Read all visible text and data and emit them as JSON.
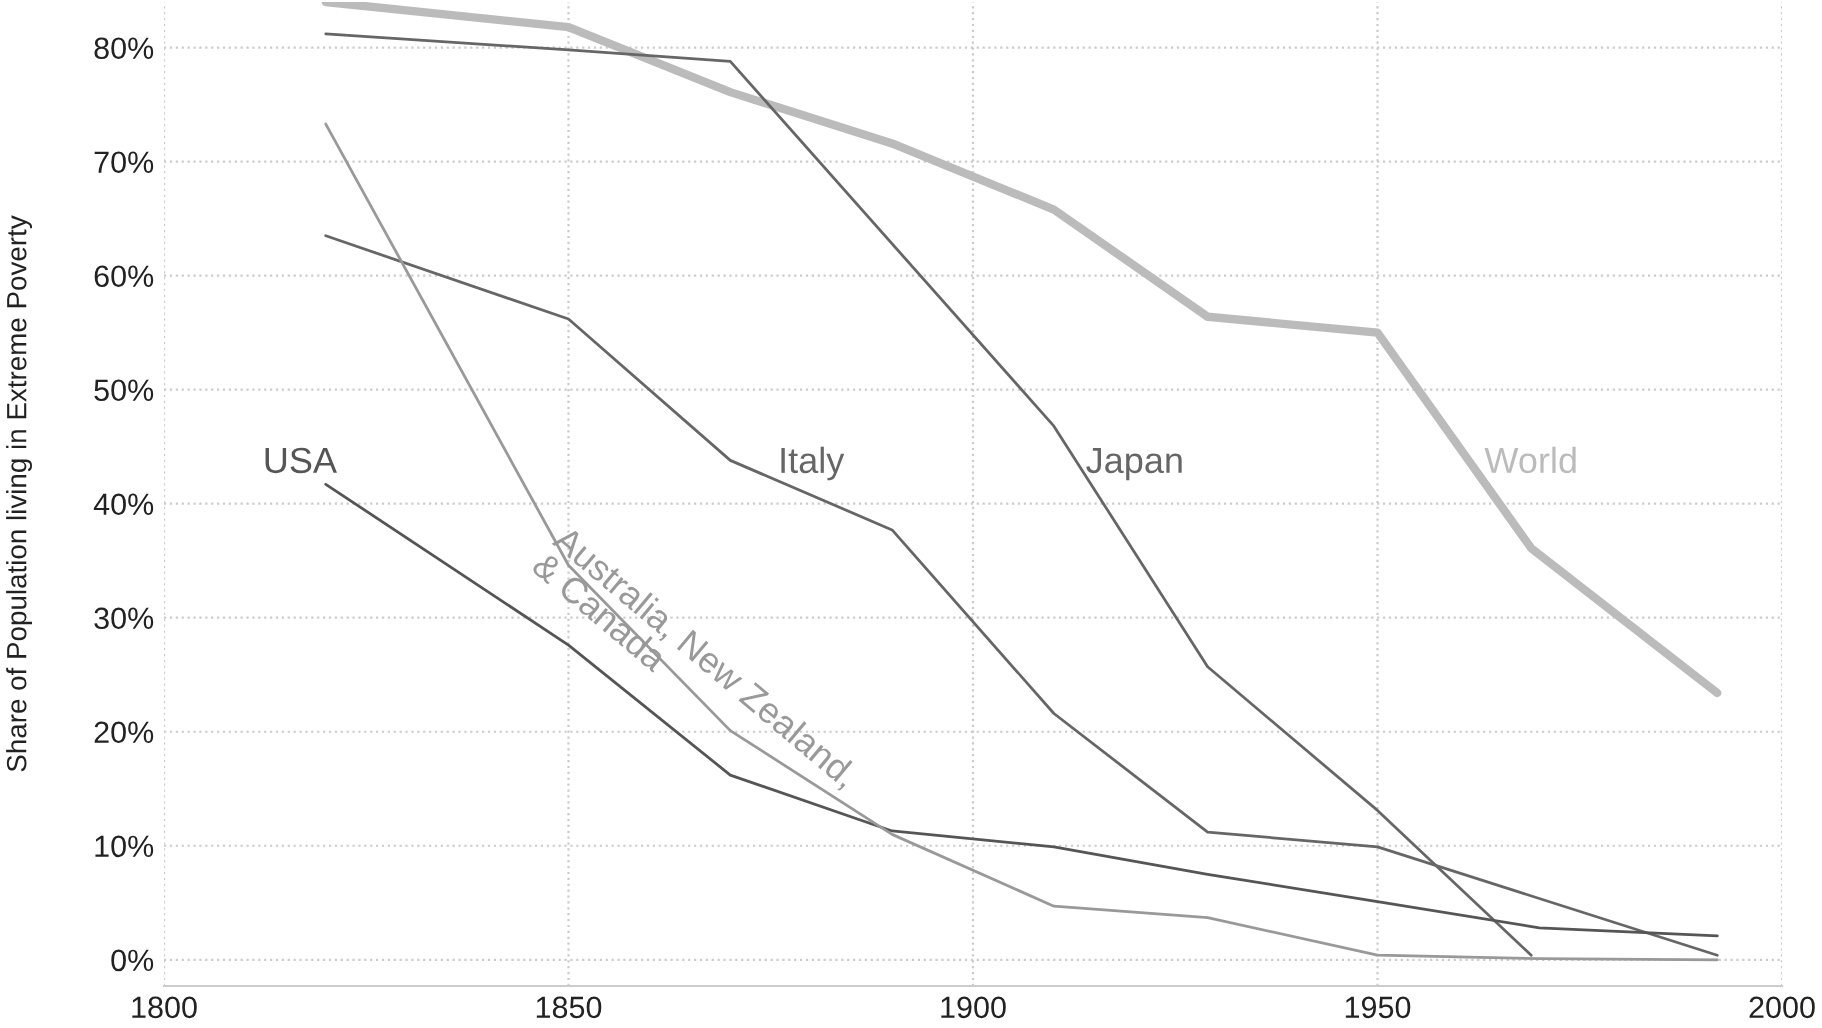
{
  "chart_data": {
    "type": "line",
    "ylabel": "Share of Population living in Extreme Poverty",
    "xlim": [
      1800,
      2000
    ],
    "xticks": [
      1800,
      1850,
      1900,
      1950,
      2000
    ],
    "ylim": [
      -2.3,
      84
    ],
    "yticks": [
      {
        "value": 0,
        "label": "0%"
      },
      {
        "value": 10,
        "label": "10%"
      },
      {
        "value": 20,
        "label": "20%"
      },
      {
        "value": 30,
        "label": "30%"
      },
      {
        "value": 40,
        "label": "40%"
      },
      {
        "value": 50,
        "label": "50%"
      },
      {
        "value": 60,
        "label": "60%"
      },
      {
        "value": 70,
        "label": "70%"
      },
      {
        "value": 80,
        "label": "80%"
      }
    ],
    "grid": true,
    "legend": false,
    "series": [
      {
        "name": "World",
        "color": "#bbbbbb",
        "x": [
          1820,
          1850,
          1870,
          1890,
          1910,
          1929,
          1950,
          1969,
          1992
        ],
        "values": [
          84,
          81.8,
          76.1,
          71.6,
          65.8,
          56.4,
          55.0,
          36.1,
          23.4
        ]
      },
      {
        "name": "Japan",
        "color": "#666666",
        "x": [
          1820,
          1850,
          1870,
          1910,
          1929,
          1950,
          1969
        ],
        "values": [
          81.2,
          79.8,
          78.8,
          46.8,
          25.7,
          13.1,
          0.4
        ]
      },
      {
        "name": "Italy",
        "color": "#666666",
        "x": [
          1820,
          1850,
          1870,
          1890,
          1910,
          1929,
          1950,
          1992
        ],
        "values": [
          63.5,
          56.2,
          43.8,
          37.7,
          21.6,
          11.2,
          9.9,
          0.4
        ]
      },
      {
        "name": "USA",
        "color": "#555555",
        "x": [
          1820,
          1850,
          1870,
          1890,
          1910,
          1929,
          1950,
          1970,
          1992
        ],
        "values": [
          41.7,
          27.6,
          16.2,
          11.3,
          9.9,
          7.5,
          5.1,
          2.8,
          2.1
        ]
      },
      {
        "name": "Australia, New Zealand,\n& Canada",
        "color": "#999999",
        "x": [
          1820,
          1850,
          1870,
          1890,
          1910,
          1929,
          1950,
          1970,
          1992
        ],
        "values": [
          73.3,
          34.6,
          20.1,
          11.0,
          4.7,
          3.7,
          0.4,
          0.1,
          0.0
        ]
      }
    ]
  }
}
